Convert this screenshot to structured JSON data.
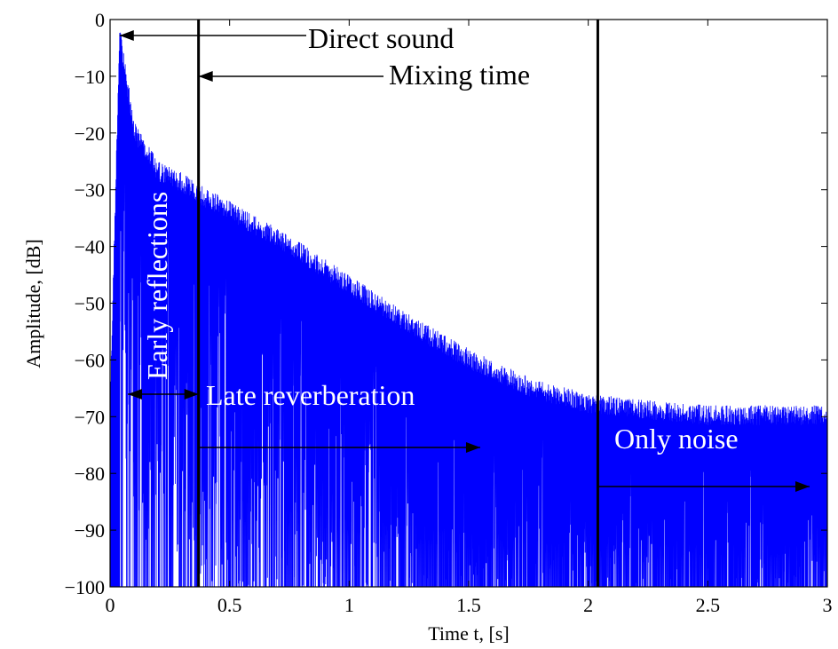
{
  "chart_data": {
    "type": "line",
    "xlabel": "Time t, [s]",
    "ylabel": "Amplitude, [dB]",
    "xlim": [
      0,
      3
    ],
    "ylim": [
      -100,
      0
    ],
    "xticks": [
      0,
      0.5,
      1,
      1.5,
      2,
      2.5,
      3
    ],
    "xtick_labels": [
      "0",
      "0.5",
      "1",
      "1.5",
      "2",
      "2.5",
      "3"
    ],
    "yticks": [
      0,
      -10,
      -20,
      -30,
      -40,
      -50,
      -60,
      -70,
      -80,
      -90,
      -100
    ],
    "ytick_labels": [
      "0",
      "−10",
      "−20",
      "−30",
      "−40",
      "−50",
      "−60",
      "−70",
      "−80",
      "−90",
      "−100"
    ],
    "grid": false,
    "series_color": "#0000ff",
    "envelope": [
      {
        "t": 0.0,
        "db": -67
      },
      {
        "t": 0.04,
        "db": -0.3
      },
      {
        "t": 0.06,
        "db": -7
      },
      {
        "t": 0.08,
        "db": -12
      },
      {
        "t": 0.1,
        "db": -18
      },
      {
        "t": 0.15,
        "db": -21
      },
      {
        "t": 0.2,
        "db": -25
      },
      {
        "t": 0.3,
        "db": -27
      },
      {
        "t": 0.37,
        "db": -29
      },
      {
        "t": 0.5,
        "db": -32
      },
      {
        "t": 0.75,
        "db": -38
      },
      {
        "t": 1.0,
        "db": -45
      },
      {
        "t": 1.25,
        "db": -52
      },
      {
        "t": 1.5,
        "db": -58
      },
      {
        "t": 1.75,
        "db": -63
      },
      {
        "t": 2.0,
        "db": -66
      },
      {
        "t": 2.5,
        "db": -68
      },
      {
        "t": 3.0,
        "db": -68
      }
    ],
    "vertical_markers": [
      {
        "name": "mixing-time",
        "x": 0.37
      },
      {
        "name": "noise-onset",
        "x": 2.04
      }
    ],
    "annotations": [
      {
        "text": "Direct sound",
        "color": "#000000"
      },
      {
        "text": "Mixing time",
        "color": "#000000"
      },
      {
        "text": "Early reflections",
        "color": "#ffffff"
      },
      {
        "text": "Late reverberation",
        "color": "#ffffff"
      },
      {
        "text": "Only noise",
        "color": "#ffffff"
      }
    ]
  }
}
